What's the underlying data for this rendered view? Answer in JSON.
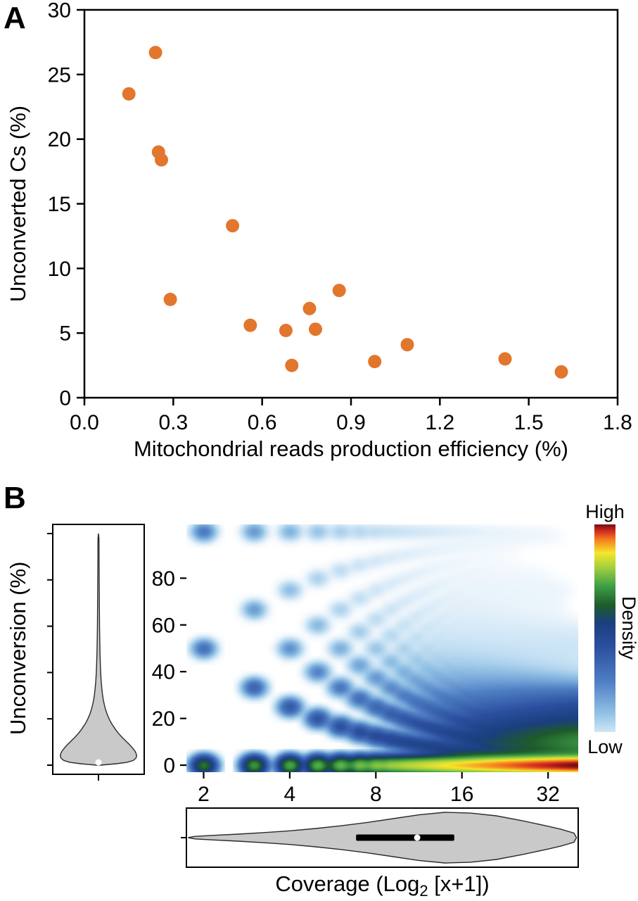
{
  "figure": {
    "panel_a_label": "A",
    "panel_b_label": "B"
  },
  "chart_data": [
    {
      "id": "panel-a-scatter",
      "type": "scatter",
      "xlabel": "Mitochondrial reads production efficiency (%)",
      "ylabel": "Unconverted Cs (%)",
      "xlim": [
        0,
        1.8
      ],
      "ylim": [
        0,
        30
      ],
      "xticks": [
        0,
        0.3,
        0.6,
        0.9,
        1.2,
        1.5,
        1.8
      ],
      "xtick_labels": [
        "0.0",
        "0.3",
        "0.6",
        "0.9",
        "1.2",
        "1.5",
        "1.8"
      ],
      "yticks": [
        0,
        5,
        10,
        15,
        20,
        25,
        30
      ],
      "ytick_labels": [
        "0",
        "5",
        "10",
        "15",
        "20",
        "25",
        "30"
      ],
      "marker_color": "#E2762D",
      "marker_radius": 9.5,
      "points": [
        [
          0.15,
          23.5
        ],
        [
          0.24,
          26.7
        ],
        [
          0.25,
          19.0
        ],
        [
          0.26,
          18.4
        ],
        [
          0.29,
          7.6
        ],
        [
          0.5,
          13.3
        ],
        [
          0.56,
          5.6
        ],
        [
          0.68,
          5.2
        ],
        [
          0.7,
          2.5
        ],
        [
          0.76,
          6.9
        ],
        [
          0.78,
          5.3
        ],
        [
          0.86,
          8.3
        ],
        [
          0.98,
          2.8
        ],
        [
          1.09,
          4.1
        ],
        [
          1.42,
          3.0
        ],
        [
          1.61,
          2.0
        ]
      ]
    },
    {
      "id": "panel-b-density",
      "type": "heatmap",
      "xlabel_parts": {
        "pre": "Coverage (Log",
        "sub": "2",
        "post": " [x+1])"
      },
      "ylabel": "Unconversion (%)",
      "xticks": [
        2,
        4,
        8,
        16,
        32
      ],
      "xtick_labels": [
        "2",
        "4",
        "8",
        "16",
        "32"
      ],
      "xticks_log2": [
        1,
        2,
        3,
        4,
        5
      ],
      "yticks": [
        0,
        20,
        40,
        60,
        80
      ],
      "ytick_labels": [
        "0",
        "20",
        "40",
        "60",
        "80"
      ],
      "xlog2_range": [
        0.8,
        5.35
      ],
      "y_range": [
        -3,
        103
      ],
      "legend": {
        "high": "High",
        "low": "Low",
        "title": "Density"
      },
      "colormap": [
        [
          0.0,
          "#ffffff"
        ],
        [
          0.05,
          "#cfe6f6"
        ],
        [
          0.14,
          "#8fbfe4"
        ],
        [
          0.28,
          "#4f7fc4"
        ],
        [
          0.44,
          "#2b4f9e"
        ],
        [
          0.55,
          "#1b3f7e"
        ],
        [
          0.63,
          "#1e5b2a"
        ],
        [
          0.72,
          "#3fa047"
        ],
        [
          0.8,
          "#9fce3e"
        ],
        [
          0.87,
          "#f6e62b"
        ],
        [
          0.93,
          "#f57e20"
        ],
        [
          0.97,
          "#d22b20"
        ],
        [
          1.0,
          "#730f11"
        ]
      ],
      "density_model": {
        "cov_min": 2,
        "cov_max": 45,
        "cov_log2_mean": 3.7,
        "cov_log2_sd": 2.2,
        "zero_extra": 1.0,
        "sigma_x": 0.08,
        "sigma_y": 2.3,
        "log_scale_k": 200,
        "mix": [
          {
            "p": 0.1,
            "w": 0.42
          },
          {
            "p": 0.22,
            "w": 0.18
          },
          {
            "p": 0.5,
            "w": 0.09,
            "decay": 1.6
          },
          {
            "p": 0.75,
            "w": 0.045,
            "decay": 1.3
          },
          {
            "p": 0.97,
            "w": 0.12,
            "decay": 0.8
          }
        ]
      },
      "unconversion_violin": {
        "fill": "#c9c9c9",
        "stroke": "#2a2a2a",
        "median": 1.2,
        "profile": [
          [
            0,
            0.05
          ],
          [
            0.6,
            0.45
          ],
          [
            1.2,
            0.72
          ],
          [
            2,
            0.88
          ],
          [
            3,
            0.95
          ],
          [
            4,
            0.97
          ],
          [
            5,
            0.955
          ],
          [
            6,
            0.93
          ],
          [
            7.5,
            0.86
          ],
          [
            9,
            0.78
          ],
          [
            10.5,
            0.69
          ],
          [
            12,
            0.6
          ],
          [
            13.5,
            0.52
          ],
          [
            15,
            0.45
          ],
          [
            16.5,
            0.39
          ],
          [
            18,
            0.33
          ],
          [
            20,
            0.27
          ],
          [
            22,
            0.22
          ],
          [
            24,
            0.18
          ],
          [
            26,
            0.15
          ],
          [
            28,
            0.125
          ],
          [
            30,
            0.105
          ],
          [
            33,
            0.085
          ],
          [
            36,
            0.07
          ],
          [
            40,
            0.055
          ],
          [
            44,
            0.046
          ],
          [
            48,
            0.04
          ],
          [
            54,
            0.032
          ],
          [
            60,
            0.027
          ],
          [
            68,
            0.023
          ],
          [
            76,
            0.019
          ],
          [
            84,
            0.016
          ],
          [
            92,
            0.014
          ],
          [
            98,
            0.012
          ],
          [
            100,
            0
          ]
        ]
      },
      "coverage_violin": {
        "fill": "#c9c9c9",
        "stroke": "#2a2a2a",
        "median_log2": 3.48,
        "box_log2": [
          2.77,
          3.91
        ],
        "profile": [
          [
            0.82,
            0
          ],
          [
            0.9,
            0.05
          ],
          [
            1.1,
            0.09
          ],
          [
            1.4,
            0.14
          ],
          [
            1.7,
            0.2
          ],
          [
            2.0,
            0.27
          ],
          [
            2.3,
            0.36
          ],
          [
            2.6,
            0.47
          ],
          [
            2.9,
            0.6
          ],
          [
            3.2,
            0.75
          ],
          [
            3.5,
            0.9
          ],
          [
            3.8,
            1.0
          ],
          [
            4.1,
            0.97
          ],
          [
            4.4,
            0.86
          ],
          [
            4.7,
            0.67
          ],
          [
            5.0,
            0.45
          ],
          [
            5.15,
            0.33
          ],
          [
            5.3,
            0.18
          ],
          [
            5.33,
            0
          ]
        ]
      }
    }
  ]
}
